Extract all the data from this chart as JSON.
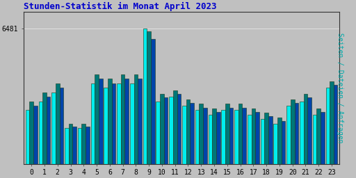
{
  "title": "Stunden-Statistik im Monat April 2023",
  "title_color": "#0000CC",
  "ylabel": "Seiten / Dateien / Anfragen",
  "ylabel_color": "#00AAAA",
  "background_color": "#C0C0C0",
  "plot_bg_color": "#C0C0C0",
  "bar_edge_color": "#1a3a1a",
  "bar1_color": "#00EEEE",
  "bar2_color": "#007777",
  "bar3_color": "#0044AA",
  "hours": [
    0,
    1,
    2,
    3,
    4,
    5,
    6,
    7,
    8,
    9,
    10,
    11,
    12,
    13,
    14,
    15,
    16,
    17,
    18,
    19,
    20,
    21,
    22,
    23
  ],
  "values1": [
    6390,
    6400,
    6410,
    6370,
    6370,
    6420,
    6415,
    6420,
    6420,
    6481,
    6400,
    6405,
    6395,
    6390,
    6385,
    6390,
    6390,
    6385,
    6380,
    6375,
    6395,
    6400,
    6385,
    6415
  ],
  "values2": [
    6400,
    6410,
    6420,
    6375,
    6375,
    6430,
    6425,
    6430,
    6430,
    6478,
    6408,
    6412,
    6402,
    6397,
    6392,
    6397,
    6397,
    6392,
    6387,
    6382,
    6402,
    6408,
    6392,
    6422
  ],
  "values3": [
    6395,
    6405,
    6415,
    6372,
    6372,
    6425,
    6420,
    6425,
    6425,
    6470,
    6404,
    6408,
    6398,
    6393,
    6388,
    6393,
    6393,
    6388,
    6383,
    6378,
    6398,
    6404,
    6388,
    6418
  ],
  "ytick_label": "6481",
  "ytick_value": 6481,
  "ylim_min": 6330,
  "ylim_max": 6500,
  "xlim_min": -0.6,
  "xlim_max": 23.6,
  "bar_width": 0.3,
  "title_fontsize": 9,
  "tick_fontsize": 7,
  "ylabel_fontsize": 7
}
